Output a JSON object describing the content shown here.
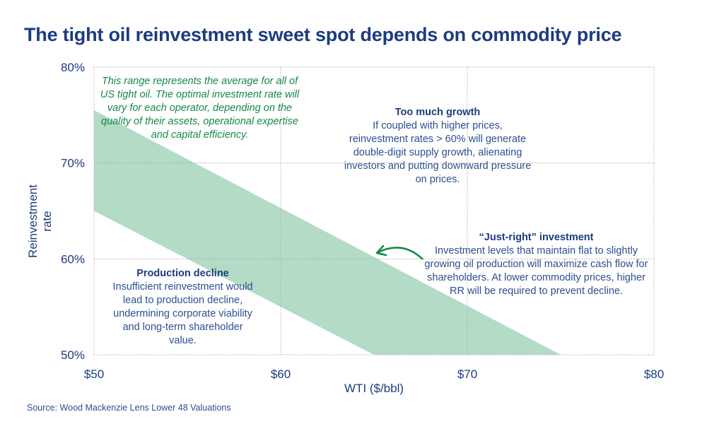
{
  "title": "The tight oil reinvestment sweet spot depends on commodity price",
  "source": "Source: Wood Mackenzie Lens Lower 48 Valuations",
  "chart_data": {
    "type": "area",
    "xlabel": "WTI ($/bbl)",
    "ylabel": "Reinvestment rate",
    "xlim": [
      50,
      80
    ],
    "ylim": [
      50,
      80
    ],
    "x_ticks": [
      50,
      60,
      70,
      80
    ],
    "x_tick_labels": [
      "$50",
      "$60",
      "$70",
      "$80"
    ],
    "y_ticks": [
      50,
      60,
      70,
      80
    ],
    "y_tick_labels": [
      "50%",
      "60%",
      "70%",
      "80%"
    ],
    "grid": true,
    "band": {
      "upper": [
        [
          50,
          75.5
        ],
        [
          75,
          50
        ]
      ],
      "lower": [
        [
          50,
          65
        ],
        [
          65,
          50
        ]
      ],
      "color": "#b3dbc6"
    },
    "annotations": {
      "range_note": "This range represents the average for all of US tight oil. The optimal investment rate will vary for each operator, depending on the quality of their assets, operational expertise and capital efficiency.",
      "too_much_title": "Too much growth",
      "too_much_text": "If coupled with higher prices, reinvestment rates > 60% will generate double-digit supply growth, alienating investors and putting downward pressure on prices.",
      "just_right_title": "“Just-right” investment",
      "just_right_text": "Investment levels that maintain flat to slightly growing oil production will maximize cash flow for shareholders. At lower commodity prices, higher RR will be required to prevent decline.",
      "decline_title": "Production decline",
      "decline_text": "Insufficient reinvestment would lead to production decline, undermining corporate viability and long-term shareholder value."
    },
    "colors": {
      "text": "#1b3c7f",
      "note": "#138a45",
      "arrow": "#138a45"
    }
  }
}
